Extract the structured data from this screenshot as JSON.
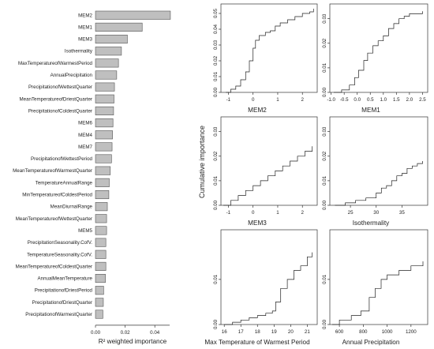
{
  "chart_data": [
    {
      "type": "bar",
      "orientation": "horizontal",
      "xlabel": "R² weighted importance",
      "xlim": [
        0,
        0.05
      ],
      "xticks": [
        "0.00",
        "0.02",
        "0.04"
      ],
      "categories": [
        "MEM2",
        "MEM1",
        "MEM3",
        "Isothermality",
        "MaxTemperatureofWarmestPeriod",
        "AnnualPrecipitation",
        "PrecipitationofWettestQuarter",
        "MeanTemperatureofDriestQuarter",
        "PrecipitationofColdestQuarter",
        "MEM6",
        "MEM4",
        "MEM7",
        "PrecipitationofWettestPeriod",
        "MeanTemperatureofWarmestQuarter",
        "TemperatureAnnualRange",
        "MinTemperatureofColdestPeriod",
        "MeanDiurnalRange",
        "MeanTemperatureofWettestQuarter",
        "MEM5",
        "PrecipitationSeasonality.CofV.",
        "TemperatureSeasonality.CofV.",
        "MeanTemperatureofColdestQuarter",
        "AnnualMeanTemperature",
        "PrecipitationofDriestPeriod",
        "PrecipitationofDriestQuarter",
        "PrecipitationofWarmestQuarter"
      ],
      "values": [
        0.0505,
        0.0315,
        0.0215,
        0.0175,
        0.0155,
        0.0143,
        0.0128,
        0.0125,
        0.0122,
        0.0118,
        0.0115,
        0.0112,
        0.0108,
        0.01,
        0.0093,
        0.009,
        0.008,
        0.0075,
        0.0075,
        0.007,
        0.007,
        0.007,
        0.0067,
        0.0055,
        0.0053,
        0.005
      ]
    },
    {
      "type": "line",
      "ylabel": "Cumulative importance",
      "panels": [
        {
          "xlabel": "MEM2",
          "xlim": [
            -1.3,
            2.6
          ],
          "ylim": [
            0,
            0.056
          ],
          "xticks": [
            -1,
            0,
            1,
            2
          ],
          "yticks": [
            "0.00",
            "0.01",
            "0.02",
            "0.03",
            "0.04",
            "0.05"
          ],
          "points": [
            [
              -1.1,
              0.0
            ],
            [
              -0.9,
              0.002
            ],
            [
              -0.7,
              0.004
            ],
            [
              -0.5,
              0.008
            ],
            [
              -0.3,
              0.013
            ],
            [
              -0.15,
              0.02
            ],
            [
              0,
              0.028
            ],
            [
              0.1,
              0.033
            ],
            [
              0.25,
              0.036
            ],
            [
              0.5,
              0.038
            ],
            [
              0.7,
              0.039
            ],
            [
              0.9,
              0.042
            ],
            [
              1.1,
              0.044
            ],
            [
              1.4,
              0.046
            ],
            [
              1.7,
              0.048
            ],
            [
              2.0,
              0.05
            ],
            [
              2.3,
              0.051
            ],
            [
              2.45,
              0.053
            ]
          ]
        },
        {
          "xlabel": "MEM1",
          "xlim": [
            -1.05,
            2.7
          ],
          "ylim": [
            0,
            0.036
          ],
          "xticks": [
            "-1.0",
            "-0.5",
            "0.0",
            "0.5",
            "1.0",
            "1.5",
            "2.0",
            "2.5"
          ],
          "yticks": [
            "0.00",
            "0.01",
            "0.02",
            "0.03"
          ],
          "points": [
            [
              -0.9,
              0.0
            ],
            [
              -0.6,
              0.001
            ],
            [
              -0.3,
              0.003
            ],
            [
              -0.1,
              0.006
            ],
            [
              0.05,
              0.009
            ],
            [
              0.25,
              0.013
            ],
            [
              0.4,
              0.016
            ],
            [
              0.6,
              0.019
            ],
            [
              0.8,
              0.021
            ],
            [
              1.0,
              0.023
            ],
            [
              1.2,
              0.026
            ],
            [
              1.4,
              0.028
            ],
            [
              1.6,
              0.03
            ],
            [
              1.8,
              0.031
            ],
            [
              2.0,
              0.032
            ],
            [
              2.2,
              0.032
            ],
            [
              2.5,
              0.033
            ]
          ]
        },
        {
          "xlabel": "MEM3",
          "xlim": [
            -1.3,
            2.6
          ],
          "ylim": [
            0,
            0.036
          ],
          "xticks": [
            -1,
            0,
            1,
            2
          ],
          "yticks": [
            "0.00",
            "0.01",
            "0.02",
            "0.03"
          ],
          "points": [
            [
              -1.2,
              0.0
            ],
            [
              -0.9,
              0.002
            ],
            [
              -0.6,
              0.004
            ],
            [
              -0.3,
              0.006
            ],
            [
              0,
              0.008
            ],
            [
              0.3,
              0.01
            ],
            [
              0.6,
              0.012
            ],
            [
              0.9,
              0.014
            ],
            [
              1.2,
              0.016
            ],
            [
              1.5,
              0.018
            ],
            [
              1.8,
              0.02
            ],
            [
              2.1,
              0.022
            ],
            [
              2.4,
              0.024
            ]
          ]
        },
        {
          "xlabel": "Isothermality",
          "xlim": [
            21,
            40
          ],
          "ylim": [
            0,
            0.036
          ],
          "xticks": [
            25,
            30,
            35
          ],
          "yticks": [
            "0.00",
            "0.01",
            "0.02",
            "0.03"
          ],
          "points": [
            [
              22,
              0.0
            ],
            [
              24,
              0.001
            ],
            [
              26,
              0.002
            ],
            [
              28,
              0.003
            ],
            [
              30,
              0.005
            ],
            [
              31,
              0.007
            ],
            [
              32,
              0.008
            ],
            [
              33,
              0.01
            ],
            [
              34,
              0.012
            ],
            [
              35,
              0.013
            ],
            [
              36,
              0.015
            ],
            [
              37,
              0.016
            ],
            [
              38,
              0.017
            ],
            [
              39,
              0.018
            ]
          ]
        },
        {
          "xlabel": "Max Temperature of Warmest Period",
          "xlim": [
            15.8,
            21.6
          ],
          "ylim": [
            0,
            0.021
          ],
          "xticks": [
            16,
            17,
            18,
            19,
            20,
            21
          ],
          "yticks": [
            "0.00",
            "0.01"
          ],
          "points": [
            [
              16,
              0.0
            ],
            [
              16.5,
              0.0005
            ],
            [
              17,
              0.001
            ],
            [
              17.5,
              0.0015
            ],
            [
              18,
              0.002
            ],
            [
              18.5,
              0.0025
            ],
            [
              18.9,
              0.003
            ],
            [
              19.1,
              0.005
            ],
            [
              19.4,
              0.008
            ],
            [
              19.8,
              0.01
            ],
            [
              20.2,
              0.012
            ],
            [
              20.6,
              0.013
            ],
            [
              21,
              0.015
            ],
            [
              21.3,
              0.016
            ]
          ]
        },
        {
          "xlabel": "Annual Precipitation",
          "xlim": [
            520,
            1340
          ],
          "ylim": [
            0,
            0.021
          ],
          "xticks": [
            600,
            800,
            1000,
            1200
          ],
          "yticks": [
            "0.00",
            "0.01"
          ],
          "points": [
            [
              540,
              0.0
            ],
            [
              600,
              0.001
            ],
            [
              700,
              0.002
            ],
            [
              780,
              0.003
            ],
            [
              850,
              0.006
            ],
            [
              900,
              0.008
            ],
            [
              950,
              0.01
            ],
            [
              1000,
              0.011
            ],
            [
              1100,
              0.012
            ],
            [
              1200,
              0.013
            ],
            [
              1300,
              0.014
            ]
          ]
        }
      ]
    }
  ]
}
